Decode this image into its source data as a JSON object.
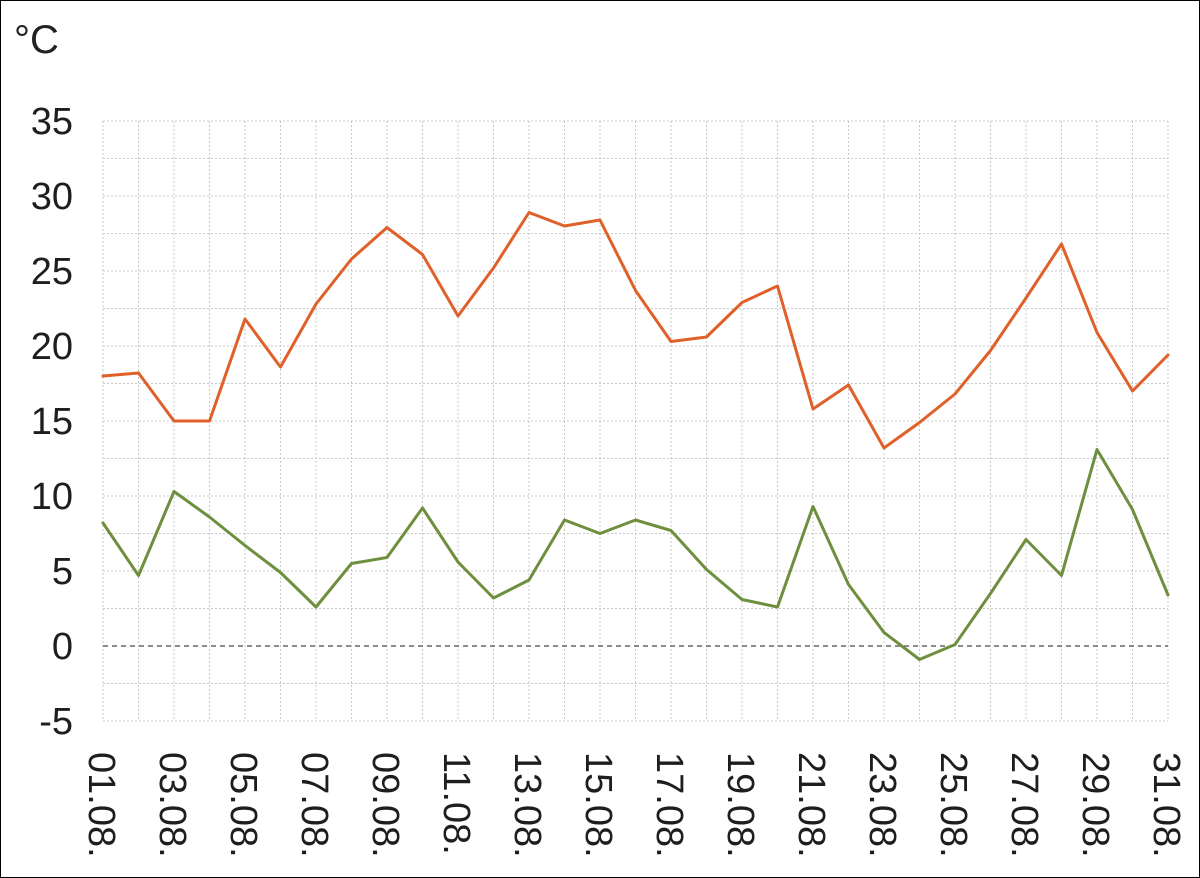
{
  "chart_data": {
    "type": "line",
    "unit_label": "°C",
    "x": [
      "01.08.",
      "02.08.",
      "03.08.",
      "04.08.",
      "05.08.",
      "06.08.",
      "07.08.",
      "08.08.",
      "09.08.",
      "10.08.",
      "11.08.",
      "12.08.",
      "13.08.",
      "14.08.",
      "15.08.",
      "16.08.",
      "17.08.",
      "18.08.",
      "19.08.",
      "20.08.",
      "21.08.",
      "22.08.",
      "23.08.",
      "24.08.",
      "25.08.",
      "26.08.",
      "27.08.",
      "28.08.",
      "29.08.",
      "30.08.",
      "31.08."
    ],
    "xticks": [
      "01.08.",
      "03.08.",
      "05.08.",
      "07.08.",
      "09.08.",
      "11.08.",
      "13.08.",
      "15.08.",
      "17.08.",
      "19.08.",
      "21.08.",
      "23.08.",
      "25.08.",
      "27.08.",
      "29.08.",
      "31.08."
    ],
    "yticks": [
      35,
      30,
      25,
      20,
      15,
      10,
      5,
      0,
      -5
    ],
    "ylim": [
      -5,
      35
    ],
    "grid": true,
    "series": [
      {
        "color": "#e0602a",
        "values": [
          18.0,
          18.2,
          15.0,
          15.0,
          21.8,
          18.6,
          22.8,
          25.8,
          27.9,
          26.1,
          22.0,
          25.2,
          28.9,
          28.0,
          28.4,
          23.7,
          20.3,
          20.6,
          22.9,
          24.0,
          15.8,
          17.4,
          13.2,
          14.9,
          16.8,
          19.7,
          23.2,
          26.8,
          20.9,
          17.0,
          19.4
        ]
      },
      {
        "color": "#6e8f3e",
        "values": [
          8.2,
          4.7,
          10.3,
          8.6,
          6.7,
          4.9,
          2.6,
          5.5,
          5.9,
          9.2,
          5.6,
          3.2,
          4.4,
          8.4,
          7.5,
          8.4,
          7.7,
          5.1,
          3.1,
          2.6,
          9.3,
          4.1,
          0.9,
          -0.9,
          0.1,
          3.5,
          7.1,
          4.7,
          13.1,
          9.1,
          3.4
        ]
      }
    ],
    "zero_line_color": "#666666",
    "grid_color": "#c8c8c8"
  }
}
